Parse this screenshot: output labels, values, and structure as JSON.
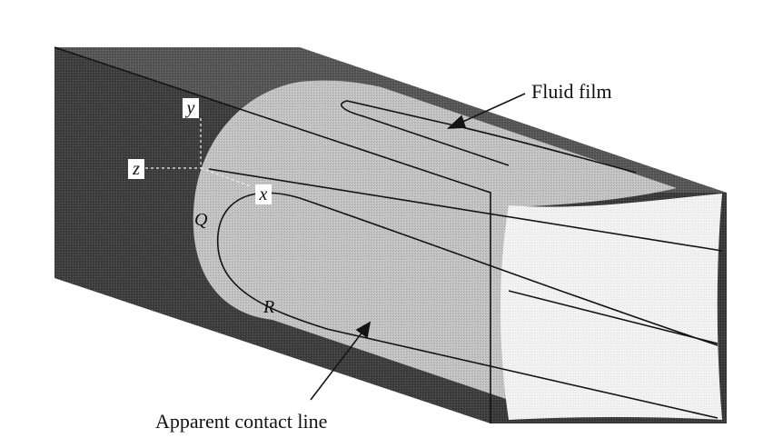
{
  "labels": {
    "fluid_film": "Fluid film",
    "apparent_contact_line": "Apparent contact line",
    "axis_y": "y",
    "axis_z": "z",
    "axis_x": "x",
    "point_q": "Q",
    "point_r": "R"
  },
  "colors": {
    "channel_wall": "#3e3e3e",
    "channel_top": "#5a5a5a",
    "film": "#c9c9c9",
    "cross_section": "#f6f6f6",
    "line": "#141414",
    "background": "#ffffff"
  }
}
